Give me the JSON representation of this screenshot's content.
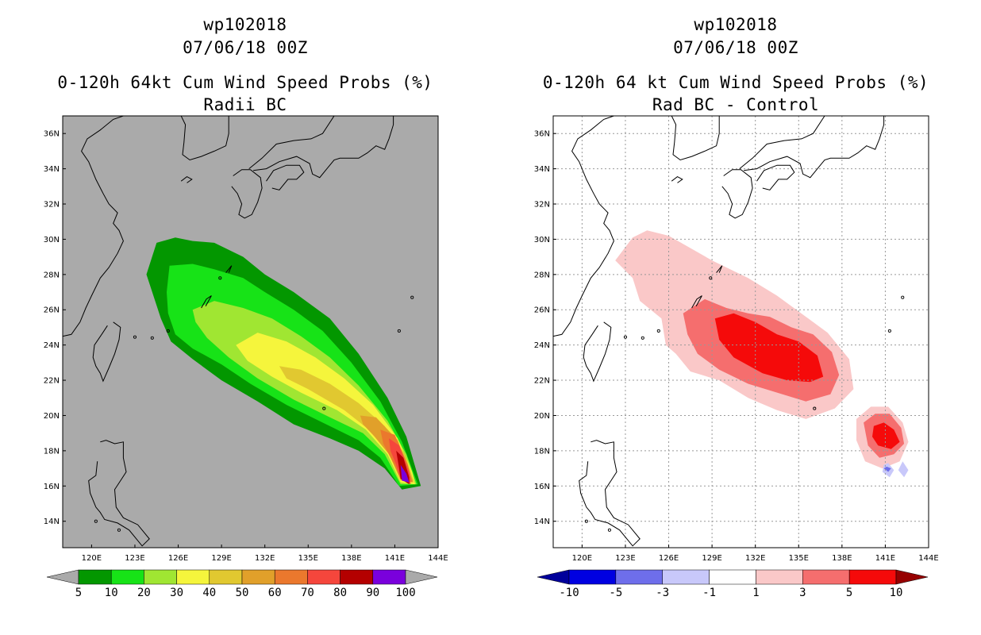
{
  "chart_data": [
    {
      "type": "heatmap",
      "header": {
        "storm_id": "wp102018",
        "datetime": "07/06/18 00Z"
      },
      "title": "0-120h 64kt Cum Wind Speed Probs (%)",
      "subtitle": "Radii BC",
      "xlabel": "",
      "ylabel": "",
      "xlim": [
        118,
        144
      ],
      "ylim": [
        12.5,
        37
      ],
      "xticks": [
        "120E",
        "123E",
        "126E",
        "129E",
        "132E",
        "135E",
        "138E",
        "141E",
        "144E"
      ],
      "yticks": [
        "14N",
        "16N",
        "18N",
        "20N",
        "22N",
        "24N",
        "26N",
        "28N",
        "30N",
        "32N",
        "34N",
        "36N"
      ],
      "grid": false,
      "background_color": "#aaaaaa",
      "colorbar": {
        "labels": [
          "5",
          "10",
          "20",
          "30",
          "40",
          "50",
          "60",
          "70",
          "80",
          "90",
          "100"
        ],
        "colors": [
          "#039700",
          "#17e317",
          "#a0e632",
          "#f5f53c",
          "#e1c830",
          "#e1a02a",
          "#eb782d",
          "#f5463c",
          "#b40000",
          "#7a00dc"
        ],
        "under_color": "#aaaaaa",
        "over_color": "#aaaaaa"
      },
      "contours": [
        {
          "level": 5,
          "color": "#039700",
          "points": [
            [
              123.8,
              28.0
            ],
            [
              124.5,
              29.8
            ],
            [
              125.8,
              30.1
            ],
            [
              127.0,
              29.9
            ],
            [
              128.5,
              29.8
            ],
            [
              130.5,
              29.0
            ],
            [
              132.0,
              28.0
            ],
            [
              134.0,
              27.0
            ],
            [
              136.5,
              25.5
            ],
            [
              138.5,
              23.5
            ],
            [
              140.5,
              21.0
            ],
            [
              141.8,
              18.8
            ],
            [
              142.8,
              16.0
            ],
            [
              141.5,
              15.8
            ],
            [
              140.3,
              17.0
            ],
            [
              138.5,
              18.0
            ],
            [
              136.5,
              18.7
            ],
            [
              134.0,
              19.5
            ],
            [
              131.5,
              20.8
            ],
            [
              129.0,
              22.0
            ],
            [
              127.0,
              23.2
            ],
            [
              125.5,
              24.2
            ],
            [
              124.8,
              25.5
            ],
            [
              124.2,
              27.0
            ]
          ]
        },
        {
          "level": 10,
          "color": "#17e317",
          "points": [
            [
              125.2,
              27.0
            ],
            [
              125.4,
              28.5
            ],
            [
              127.0,
              28.6
            ],
            [
              128.5,
              28.3
            ],
            [
              130.5,
              27.8
            ],
            [
              132.0,
              27.0
            ],
            [
              134.0,
              26.0
            ],
            [
              136.0,
              24.8
            ],
            [
              138.0,
              23.0
            ],
            [
              140.0,
              20.8
            ],
            [
              141.5,
              18.5
            ],
            [
              142.6,
              16.1
            ],
            [
              141.3,
              16.0
            ],
            [
              140.0,
              17.6
            ],
            [
              138.5,
              18.6
            ],
            [
              136.0,
              19.6
            ],
            [
              133.5,
              20.6
            ],
            [
              131.0,
              21.8
            ],
            [
              129.0,
              22.9
            ],
            [
              127.0,
              23.8
            ],
            [
              125.8,
              24.6
            ],
            [
              125.3,
              25.8
            ]
          ]
        },
        {
          "level": 20,
          "color": "#a0e632",
          "points": [
            [
              127.0,
              26.0
            ],
            [
              128.5,
              26.5
            ],
            [
              130.5,
              26.1
            ],
            [
              132.5,
              25.5
            ],
            [
              134.5,
              24.5
            ],
            [
              136.5,
              23.3
            ],
            [
              138.5,
              21.7
            ],
            [
              140.5,
              19.7
            ],
            [
              141.8,
              17.8
            ],
            [
              142.5,
              16.1
            ],
            [
              141.4,
              16.1
            ],
            [
              140.3,
              17.8
            ],
            [
              138.8,
              19.0
            ],
            [
              136.5,
              19.9
            ],
            [
              134.0,
              20.9
            ],
            [
              131.5,
              22.1
            ],
            [
              129.5,
              23.3
            ],
            [
              128.0,
              24.4
            ],
            [
              127.2,
              25.3
            ]
          ]
        },
        {
          "level": 30,
          "color": "#f5f53c",
          "points": [
            [
              130.0,
              24.0
            ],
            [
              131.5,
              24.7
            ],
            [
              133.5,
              24.2
            ],
            [
              135.5,
              23.3
            ],
            [
              137.5,
              22.1
            ],
            [
              139.5,
              20.6
            ],
            [
              141.2,
              18.7
            ],
            [
              142.2,
              16.8
            ],
            [
              142.4,
              16.1
            ],
            [
              141.4,
              16.2
            ],
            [
              140.5,
              17.8
            ],
            [
              139.0,
              19.2
            ],
            [
              137.0,
              20.3
            ],
            [
              134.5,
              21.3
            ],
            [
              132.5,
              22.2
            ],
            [
              130.8,
              23.1
            ]
          ]
        },
        {
          "level": 40,
          "color": "#e1c830",
          "points": [
            [
              133.0,
              22.8
            ],
            [
              134.5,
              22.6
            ],
            [
              136.5,
              21.8
            ],
            [
              138.5,
              20.7
            ],
            [
              140.3,
              19.4
            ],
            [
              141.7,
              17.8
            ],
            [
              142.3,
              16.3
            ],
            [
              141.4,
              16.3
            ],
            [
              140.6,
              17.8
            ],
            [
              139.2,
              19.2
            ],
            [
              137.5,
              20.3
            ],
            [
              135.0,
              21.5
            ],
            [
              133.5,
              22.1
            ]
          ]
        },
        {
          "level": 50,
          "color": "#e1a02a",
          "points": [
            [
              138.6,
              20.0
            ],
            [
              139.7,
              19.9
            ],
            [
              141.2,
              18.6
            ],
            [
              142.1,
              16.6
            ],
            [
              142.3,
              16.2
            ],
            [
              141.4,
              16.4
            ],
            [
              140.8,
              17.6
            ],
            [
              139.6,
              18.8
            ],
            [
              138.8,
              19.5
            ]
          ]
        },
        {
          "level": 60,
          "color": "#eb782d",
          "points": [
            [
              140.0,
              19.2
            ],
            [
              141.0,
              18.9
            ],
            [
              141.9,
              17.2
            ],
            [
              142.2,
              16.2
            ],
            [
              141.4,
              16.4
            ],
            [
              140.9,
              17.3
            ],
            [
              140.2,
              18.4
            ]
          ]
        },
        {
          "level": 70,
          "color": "#f5463c",
          "points": [
            [
              140.6,
              18.7
            ],
            [
              141.3,
              18.3
            ],
            [
              142.0,
              16.8
            ],
            [
              142.1,
              16.1
            ],
            [
              141.4,
              16.4
            ],
            [
              141.1,
              17.2
            ],
            [
              140.7,
              18.0
            ]
          ]
        },
        {
          "level": 80,
          "color": "#b40000",
          "points": [
            [
              141.1,
              18.0
            ],
            [
              141.6,
              17.6
            ],
            [
              142.0,
              16.5
            ],
            [
              142.0,
              16.1
            ],
            [
              141.4,
              16.4
            ],
            [
              141.3,
              17.0
            ]
          ]
        },
        {
          "level": 90,
          "color": "#7a00dc",
          "points": [
            [
              141.4,
              17.2
            ],
            [
              141.8,
              16.7
            ],
            [
              142.0,
              16.2
            ],
            [
              141.5,
              16.3
            ]
          ]
        }
      ]
    },
    {
      "type": "heatmap",
      "header": {
        "storm_id": "wp102018",
        "datetime": "07/06/18 00Z"
      },
      "title": "0-120h 64 kt Cum Wind Speed Probs (%)",
      "subtitle": "Rad BC - Control",
      "xlabel": "",
      "ylabel": "",
      "xlim": [
        118,
        144
      ],
      "ylim": [
        12.5,
        37
      ],
      "xticks": [
        "120E",
        "123E",
        "126E",
        "129E",
        "132E",
        "135E",
        "138E",
        "141E",
        "144E"
      ],
      "yticks": [
        "14N",
        "16N",
        "18N",
        "20N",
        "22N",
        "24N",
        "26N",
        "28N",
        "30N",
        "32N",
        "34N",
        "36N"
      ],
      "grid": true,
      "background_color": "#ffffff",
      "colorbar": {
        "labels": [
          "-10",
          "-5",
          "-3",
          "-1",
          "1",
          "3",
          "5",
          "10"
        ],
        "colors": [
          "#0000e1",
          "#6e6eeb",
          "#c8c8fa",
          "#ffffff",
          "#fac8c8",
          "#f56e6e",
          "#f50a0a"
        ],
        "under_color": "#00009b",
        "over_color": "#960000"
      },
      "contours": [
        {
          "level": 1,
          "color": "#fac8c8",
          "points": [
            [
              122.3,
              28.8
            ],
            [
              123.5,
              30.1
            ],
            [
              124.5,
              30.5
            ],
            [
              126.0,
              30.2
            ],
            [
              127.5,
              29.5
            ],
            [
              129.0,
              28.8
            ],
            [
              131.5,
              27.8
            ],
            [
              133.5,
              26.8
            ],
            [
              135.5,
              25.6
            ],
            [
              137.0,
              24.7
            ],
            [
              138.5,
              23.2
            ],
            [
              138.8,
              21.5
            ],
            [
              137.5,
              20.4
            ],
            [
              135.5,
              19.8
            ],
            [
              133.5,
              20.3
            ],
            [
              131.5,
              21.0
            ],
            [
              129.5,
              22.0
            ],
            [
              127.5,
              22.5
            ],
            [
              126.5,
              23.5
            ],
            [
              125.8,
              24.0
            ],
            [
              125.5,
              25.5
            ],
            [
              124.0,
              26.5
            ],
            [
              123.5,
              27.8
            ]
          ]
        },
        {
          "level": 1,
          "color": "#fac8c8",
          "points": [
            [
              139.0,
              19.8
            ],
            [
              140.0,
              20.5
            ],
            [
              141.2,
              20.5
            ],
            [
              142.2,
              19.6
            ],
            [
              142.6,
              18.5
            ],
            [
              142.0,
              17.4
            ],
            [
              140.8,
              17.0
            ],
            [
              139.6,
              17.4
            ],
            [
              139.0,
              18.6
            ]
          ]
        },
        {
          "level": 3,
          "color": "#f56e6e",
          "points": [
            [
              127.0,
              25.8
            ],
            [
              128.5,
              26.6
            ],
            [
              130.0,
              26.1
            ],
            [
              131.5,
              25.8
            ],
            [
              133.0,
              25.6
            ],
            [
              134.5,
              25.0
            ],
            [
              136.0,
              24.6
            ],
            [
              137.3,
              23.6
            ],
            [
              137.8,
              22.3
            ],
            [
              137.2,
              21.2
            ],
            [
              135.5,
              20.8
            ],
            [
              133.5,
              21.3
            ],
            [
              131.5,
              21.8
            ],
            [
              129.5,
              22.6
            ],
            [
              128.0,
              23.5
            ],
            [
              127.3,
              24.6
            ]
          ]
        },
        {
          "level": 3,
          "color": "#f56e6e",
          "points": [
            [
              139.5,
              19.6
            ],
            [
              140.3,
              20.1
            ],
            [
              141.3,
              20.1
            ],
            [
              142.1,
              19.3
            ],
            [
              142.3,
              18.4
            ],
            [
              141.6,
              17.8
            ],
            [
              140.6,
              17.6
            ],
            [
              139.8,
              18.3
            ]
          ]
        },
        {
          "level": 5,
          "color": "#f50a0a",
          "points": [
            [
              129.2,
              25.5
            ],
            [
              130.5,
              25.8
            ],
            [
              132.0,
              25.3
            ],
            [
              133.5,
              24.6
            ],
            [
              135.0,
              24.2
            ],
            [
              136.3,
              23.4
            ],
            [
              136.7,
              22.2
            ],
            [
              135.8,
              21.9
            ],
            [
              134.2,
              22.0
            ],
            [
              132.5,
              22.4
            ],
            [
              130.5,
              23.3
            ],
            [
              129.5,
              24.3
            ]
          ]
        },
        {
          "level": 5,
          "color": "#f50a0a",
          "points": [
            [
              140.2,
              19.4
            ],
            [
              140.9,
              19.6
            ],
            [
              141.6,
              19.2
            ],
            [
              142.0,
              18.5
            ],
            [
              141.4,
              18.1
            ],
            [
              140.5,
              18.3
            ],
            [
              140.1,
              18.8
            ]
          ]
        },
        {
          "level": -1,
          "color": "#c8c8fa",
          "points": [
            [
              140.8,
              16.8
            ],
            [
              141.3,
              16.5
            ],
            [
              141.6,
              16.9
            ],
            [
              141.2,
              17.3
            ],
            [
              140.9,
              17.2
            ]
          ]
        },
        {
          "level": -1,
          "color": "#c8c8fa",
          "points": [
            [
              141.9,
              16.9
            ],
            [
              142.3,
              16.5
            ],
            [
              142.6,
              16.9
            ],
            [
              142.2,
              17.4
            ]
          ]
        },
        {
          "level": -3,
          "color": "#6e6eeb",
          "points": [
            [
              140.9,
              17.0
            ],
            [
              141.2,
              16.8
            ],
            [
              141.4,
              17.0
            ],
            [
              141.1,
              17.1
            ]
          ]
        }
      ]
    }
  ]
}
